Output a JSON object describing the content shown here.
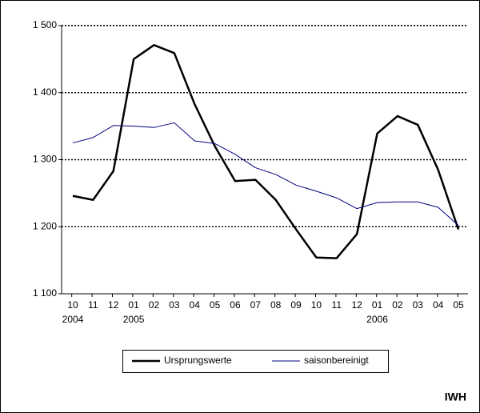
{
  "chart_data": {
    "type": "line",
    "categories": [
      "10",
      "11",
      "12",
      "01",
      "02",
      "03",
      "04",
      "05",
      "06",
      "07",
      "08",
      "09",
      "10",
      "11",
      "12",
      "01",
      "02",
      "03",
      "04",
      "05"
    ],
    "years": [
      "2004",
      null,
      null,
      "2005",
      null,
      null,
      null,
      null,
      null,
      null,
      null,
      null,
      null,
      null,
      null,
      "2006",
      null,
      null,
      null,
      null
    ],
    "series": [
      {
        "name": "Ursprungswerte",
        "color": "#000000",
        "width": 2.5,
        "values": [
          1246,
          1240,
          1283,
          1450,
          1471,
          1459,
          1383,
          1320,
          1268,
          1270,
          1240,
          1196,
          1154,
          1153,
          1189,
          1339,
          1365,
          1352,
          1285,
          1196
        ]
      },
      {
        "name": "saisonbereinigt",
        "color": "#000080",
        "width": 1,
        "values": [
          1325,
          1333,
          1351,
          1350,
          1348,
          1355,
          1328,
          1324,
          1308,
          1288,
          1278,
          1262,
          1253,
          1243,
          1227,
          1236,
          1237,
          1237,
          1229,
          1202
        ]
      }
    ],
    "ylim": [
      1100,
      1500
    ],
    "yticks": [
      {
        "value": 1100,
        "label": "1 100"
      },
      {
        "value": 1200,
        "label": "1 200"
      },
      {
        "value": 1300,
        "label": "1 300"
      },
      {
        "value": 1400,
        "label": "1 400"
      },
      {
        "value": 1500,
        "label": "1 500"
      }
    ],
    "grid": true,
    "source": "IWH"
  }
}
